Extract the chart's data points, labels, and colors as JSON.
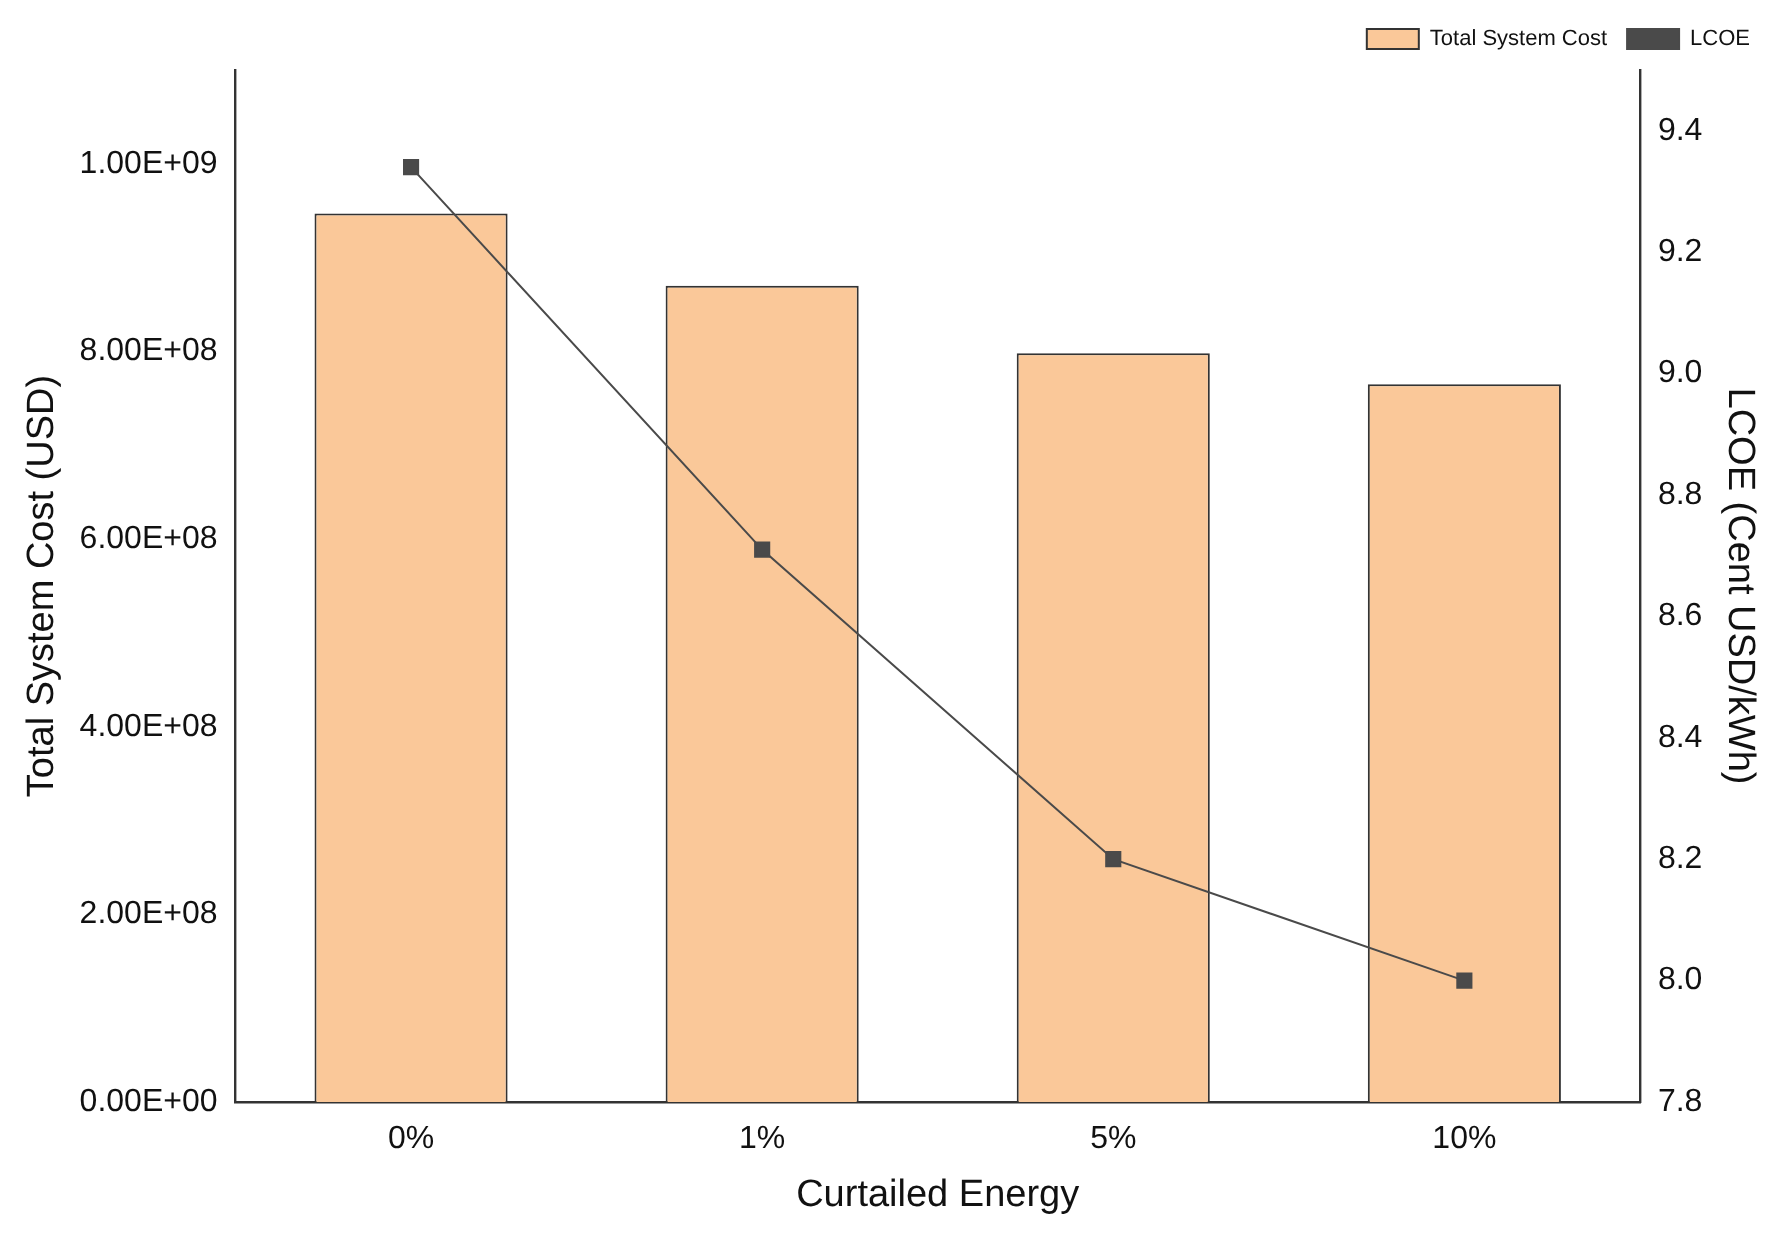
{
  "chart_data": {
    "type": "bar",
    "xlabel": "Curtailed Energy",
    "ylabel": "Total System Cost (USD)",
    "y2label": "LCOE (Cent USD/kWh)",
    "categories": [
      "0%",
      "1%",
      "5%",
      "10%"
    ],
    "series": [
      {
        "name": "Total System Cost",
        "color": "#fac899",
        "values": [
          947000000,
          870000000,
          798000000,
          765000000
        ]
      },
      {
        "name": "LCOE",
        "type": "line",
        "axis": "y2",
        "color": "#4a4a4a",
        "marker": "square",
        "values": [
          9.34,
          8.71,
          8.2,
          8.0
        ]
      }
    ],
    "ylim": [
      0,
      1100000000
    ],
    "yticks": [
      {
        "value": 0,
        "label": "0.00E+00"
      },
      {
        "value": 200000000,
        "label": "2.00E+08"
      },
      {
        "value": 400000000,
        "label": "4.00E+08"
      },
      {
        "value": 600000000,
        "label": "6.00E+08"
      },
      {
        "value": 800000000,
        "label": "8.00E+08"
      },
      {
        "value": 1000000000,
        "label": "1.00E+09"
      }
    ],
    "y2lim": [
      7.8,
      9.5
    ],
    "y2ticks": [
      7.8,
      {
        "value": 8,
        "label": "8.0"
      },
      8.2,
      8.4,
      8.6,
      8.8,
      {
        "value": 9,
        "label": "9.0"
      },
      9.2,
      9.4
    ],
    "grid": false,
    "legend": "top right"
  }
}
